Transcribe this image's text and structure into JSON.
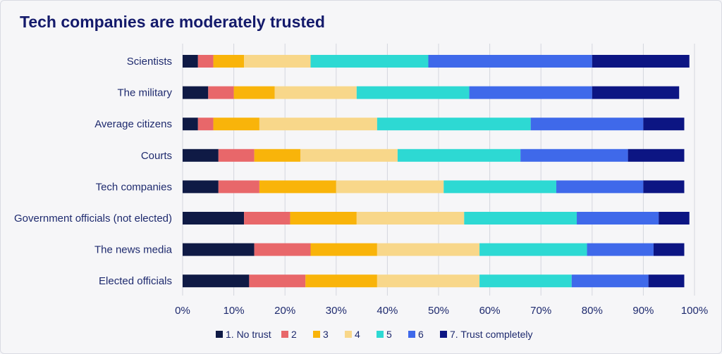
{
  "chart_data": {
    "type": "bar",
    "orientation": "horizontal",
    "stacked": true,
    "title": "Tech companies are moderately trusted",
    "xlabel": "",
    "ylabel": "",
    "xlim": [
      0,
      100
    ],
    "x_ticks": [
      "0%",
      "10%",
      "20%",
      "30%",
      "40%",
      "50%",
      "60%",
      "70%",
      "80%",
      "90%",
      "100%"
    ],
    "grid": true,
    "legend_position": "bottom",
    "categories": [
      "Scientists",
      "The military",
      "Average citizens",
      "Courts",
      "Tech companies",
      "Government officials (not elected)",
      "The news media",
      "Elected officials"
    ],
    "series": [
      {
        "name": "1. No trust",
        "color": "#0f1a45",
        "values": [
          3,
          5,
          3,
          7,
          7,
          12,
          14,
          13
        ]
      },
      {
        "name": "2",
        "color": "#e8676a",
        "values": [
          3,
          5,
          3,
          7,
          8,
          9,
          11,
          11
        ]
      },
      {
        "name": "3",
        "color": "#f9b40a",
        "values": [
          6,
          8,
          9,
          9,
          15,
          13,
          13,
          14
        ]
      },
      {
        "name": "4",
        "color": "#f8d78a",
        "values": [
          13,
          16,
          23,
          19,
          21,
          21,
          20,
          20
        ]
      },
      {
        "name": "5",
        "color": "#2dd9d3",
        "values": [
          23,
          22,
          30,
          24,
          22,
          22,
          21,
          18
        ]
      },
      {
        "name": "6",
        "color": "#3f69ea",
        "values": [
          32,
          24,
          22,
          21,
          17,
          16,
          13,
          15
        ]
      },
      {
        "name": "7. Trust completely",
        "color": "#0c1583",
        "values": [
          19,
          17,
          8,
          11,
          8,
          6,
          6,
          7
        ]
      }
    ]
  }
}
